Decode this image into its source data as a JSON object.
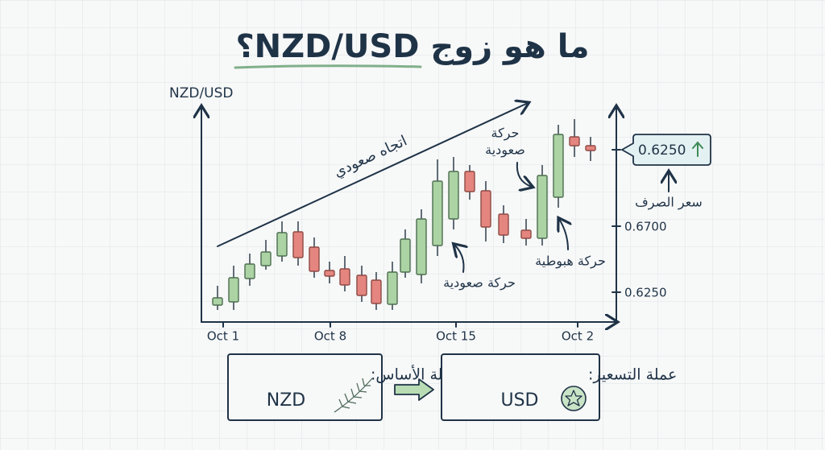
{
  "title": "ما هو زوج NZD/USD؟",
  "chart": {
    "y_axis_label": "NZD/USD",
    "x_labels": [
      "Oct 1",
      "Oct 8",
      "Oct 15",
      "Oct 2"
    ],
    "price_labels": [
      "0.6700",
      "0.6250"
    ],
    "trend_label": "اتجاه صعودي",
    "annotations": [
      {
        "lines": [
          "حركة صعودية"
        ]
      },
      {
        "lines": [
          "حركة",
          "صعودية"
        ]
      },
      {
        "lines": [
          "حركة هبوطية"
        ]
      }
    ],
    "callout": {
      "price": "0.6250",
      "caption": "سعر الصرف"
    }
  },
  "currencies": {
    "base": {
      "label": "العملة الأساس:",
      "code": "NZD"
    },
    "quote": {
      "label": "عملة التسعير:",
      "code": "USD"
    }
  }
}
